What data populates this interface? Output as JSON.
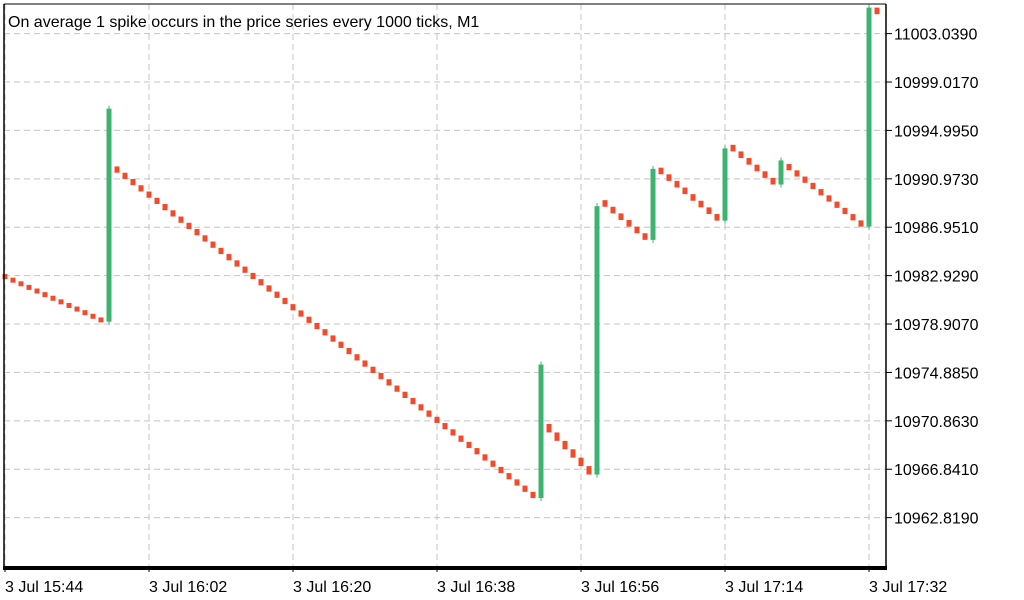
{
  "chart_data": {
    "type": "candlestick",
    "title": "On average 1 spike occurs in the price series every 1000 ticks, M1",
    "grid": true,
    "colors": {
      "up": "#3cb371",
      "down": "#f44a2c",
      "frame": "#000000",
      "grid": "#c4c4c4"
    },
    "ylim": [
      10958.8,
      11005.5
    ],
    "y_ticks": [
      "11003.0390",
      "10999.0170",
      "10994.9950",
      "10990.9730",
      "10986.9510",
      "10982.9290",
      "10978.9070",
      "10974.8850",
      "10970.8630",
      "10966.8410",
      "10962.8190"
    ],
    "x_ticks": [
      "3 Jul 15:44",
      "3 Jul 16:02",
      "3 Jul 16:20",
      "3 Jul 16:38",
      "3 Jul 16:56",
      "3 Jul 17:14",
      "3 Jul 17:32"
    ],
    "x_start": "3 Jul 15:44",
    "bar_minutes": 1,
    "segments": [
      {
        "start": 10983.0,
        "drift": -0.3,
        "n": 13,
        "spike": 17.7
      },
      {
        "start": 10992.0,
        "drift": -0.52,
        "n": 53,
        "spike": 11.1
      },
      {
        "start": 10970.6,
        "drift": -0.7,
        "n": 6,
        "spike": 22.3
      },
      {
        "start": 10989.2,
        "drift": -0.55,
        "n": 6,
        "spike": 5.9
      },
      {
        "start": 10991.9,
        "drift": -0.55,
        "n": 8,
        "spike": 6.0
      },
      {
        "start": 10993.8,
        "drift": -0.55,
        "n": 6,
        "spike": 2.0
      },
      {
        "start": 10992.2,
        "drift": -0.52,
        "n": 10,
        "spike": 18.2
      },
      {
        "start": 11005.2,
        "drift": -0.55,
        "n": 8,
        "spike": null
      }
    ]
  }
}
